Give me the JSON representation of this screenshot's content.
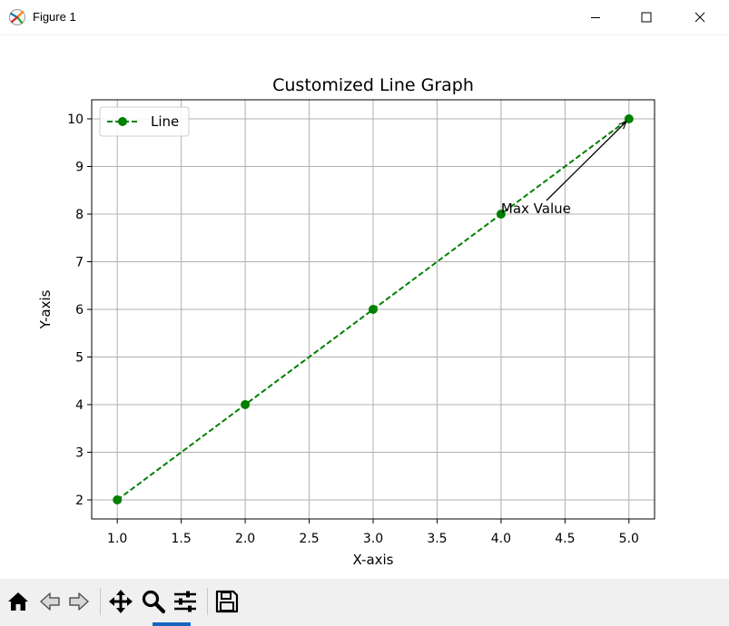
{
  "window": {
    "title": "Figure 1",
    "controls": [
      "minimize-icon",
      "maximize-icon",
      "close-icon"
    ]
  },
  "toolbar": {
    "buttons": [
      "home-icon",
      "back-icon",
      "forward-icon",
      "pan-icon",
      "zoom-icon",
      "configure-subplots-icon",
      "save-icon"
    ]
  },
  "chart_data": {
    "type": "line",
    "title": "Customized Line Graph",
    "xlabel": "X-axis",
    "ylabel": "Y-axis",
    "x": [
      1,
      2,
      3,
      4,
      5
    ],
    "series": [
      {
        "name": "Line",
        "values": [
          2,
          4,
          6,
          8,
          10
        ],
        "color": "#008000",
        "linestyle": "dashed",
        "marker": "circle"
      }
    ],
    "xlim": [
      0.8,
      5.2
    ],
    "ylim": [
      1.6,
      10.4
    ],
    "xticks": [
      "1.0",
      "1.5",
      "2.0",
      "2.5",
      "3.0",
      "3.5",
      "4.0",
      "4.5",
      "5.0"
    ],
    "yticks": [
      "2",
      "3",
      "4",
      "5",
      "6",
      "7",
      "8",
      "9",
      "10"
    ],
    "grid": true,
    "legend": "upper-left",
    "annotation": {
      "text": "Max Value",
      "xy": [
        5,
        10
      ],
      "xytext": [
        4,
        8
      ]
    }
  }
}
